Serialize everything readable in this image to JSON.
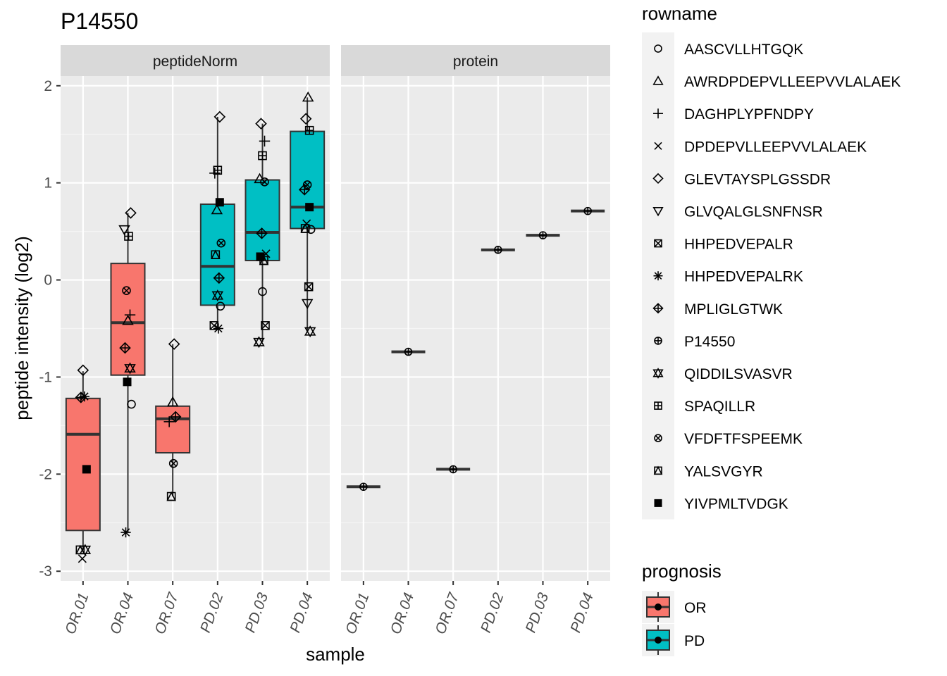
{
  "chart_data": {
    "type": "boxplot",
    "title": "P14550",
    "xlabel": "sample",
    "ylabel": "peptide intensity (log2)",
    "ylim": [
      -3.1,
      2.1
    ],
    "y_ticks": [
      "-3",
      "-2",
      "-1",
      "0",
      "1",
      "2"
    ],
    "y_tick_values": [
      -3,
      -2,
      -1,
      0,
      1,
      2
    ],
    "panels": [
      "peptideNorm",
      "protein"
    ],
    "samples": [
      "OR.01",
      "OR.04",
      "OR.07",
      "PD.02",
      "PD.03",
      "PD.04"
    ],
    "sample_group": [
      "OR",
      "OR",
      "OR",
      "PD",
      "PD",
      "PD"
    ],
    "grid": true,
    "legend_placement": "right",
    "colors": {
      "OR": "#F8766D",
      "PD": "#00BFC4",
      "panel_bg": "#EBEBEB",
      "strip_bg": "#D9D9D9",
      "grid": "#FFFFFF"
    },
    "boxes": [
      {
        "sample": "OR.01",
        "group": "OR",
        "lower_whisker": -2.78,
        "q1": -2.58,
        "median": -1.59,
        "q3": -1.22,
        "upper_whisker": -0.94
      },
      {
        "sample": "OR.04",
        "group": "OR",
        "lower_whisker": -2.6,
        "q1": -0.98,
        "median": -0.44,
        "q3": 0.17,
        "upper_whisker": 0.69
      },
      {
        "sample": "OR.07",
        "group": "OR",
        "lower_whisker": -2.23,
        "q1": -1.78,
        "median": -1.43,
        "q3": -1.3,
        "upper_whisker": -0.66
      },
      {
        "sample": "PD.02",
        "group": "PD",
        "lower_whisker": -0.5,
        "q1": -0.26,
        "median": 0.14,
        "q3": 0.78,
        "upper_whisker": 1.68
      },
      {
        "sample": "PD.03",
        "group": "PD",
        "lower_whisker": -0.64,
        "q1": 0.2,
        "median": 0.49,
        "q3": 1.03,
        "upper_whisker": 1.61
      },
      {
        "sample": "PD.04",
        "group": "PD",
        "lower_whisker": -0.53,
        "q1": 0.53,
        "median": 0.75,
        "q3": 1.53,
        "upper_whisker": 1.88
      }
    ],
    "points": [
      {
        "sample": "OR.01",
        "peptide": "YALSVGYR",
        "y": -2.78
      },
      {
        "sample": "OR.01",
        "peptide": "QIDDILSVASVR",
        "y": -2.78
      },
      {
        "sample": "OR.01",
        "peptide": "DPDEPVLLEEPVVLALAEK",
        "y": -2.87
      },
      {
        "sample": "OR.01",
        "peptide": "YIVPMLTVDGK",
        "y": -1.95
      },
      {
        "sample": "OR.01",
        "peptide": "MPLIGLGTWK",
        "y": -1.21
      },
      {
        "sample": "OR.01",
        "peptide": "HHPEDVEPALRK",
        "y": -1.2
      },
      {
        "sample": "OR.01",
        "peptide": "GLEVTAYSPLGSSDR",
        "y": -0.93
      },
      {
        "sample": "OR.04",
        "peptide": "GLEVTAYSPLGSSDR",
        "y": 0.69
      },
      {
        "sample": "OR.04",
        "peptide": "GLVQALGLSNFNSR",
        "y": 0.52
      },
      {
        "sample": "OR.04",
        "peptide": "SPAQILLR",
        "y": 0.45
      },
      {
        "sample": "OR.04",
        "peptide": "VFDFTFSPEEMK",
        "y": -0.11
      },
      {
        "sample": "OR.04",
        "peptide": "DAGHPLYPFNDPY",
        "y": -0.36
      },
      {
        "sample": "OR.04",
        "peptide": "AWRDPDEPVLLEEPVVLALAEK",
        "y": -0.42
      },
      {
        "sample": "OR.04",
        "peptide": "MPLIGLGTWK",
        "y": -0.7
      },
      {
        "sample": "OR.04",
        "peptide": "QIDDILSVASVR",
        "y": -0.91
      },
      {
        "sample": "OR.04",
        "peptide": "YIVPMLTVDGK",
        "y": -1.05
      },
      {
        "sample": "OR.04",
        "peptide": "AASCVLLHTGQK",
        "y": -1.28
      },
      {
        "sample": "OR.04",
        "peptide": "HHPEDVEPALRK",
        "y": -2.6
      },
      {
        "sample": "OR.07",
        "peptide": "GLEVTAYSPLGSSDR",
        "y": -0.66
      },
      {
        "sample": "OR.07",
        "peptide": "AWRDPDEPVLLEEPVVLALAEK",
        "y": -1.26
      },
      {
        "sample": "OR.07",
        "peptide": "MPLIGLGTWK",
        "y": -1.41
      },
      {
        "sample": "OR.07",
        "peptide": "DAGHPLYPFNDPY",
        "y": -1.46
      },
      {
        "sample": "OR.07",
        "peptide": "VFDFTFSPEEMK",
        "y": -1.89
      },
      {
        "sample": "OR.07",
        "peptide": "YALSVGYR",
        "y": -2.23
      },
      {
        "sample": "PD.02",
        "peptide": "GLEVTAYSPLGSSDR",
        "y": 1.68
      },
      {
        "sample": "PD.02",
        "peptide": "SPAQILLR",
        "y": 1.13
      },
      {
        "sample": "PD.02",
        "peptide": "DAGHPLYPFNDPY",
        "y": 1.1
      },
      {
        "sample": "PD.02",
        "peptide": "YIVPMLTVDGK",
        "y": 0.8
      },
      {
        "sample": "PD.02",
        "peptide": "AWRDPDEPVLLEEPVVLALAEK",
        "y": 0.72
      },
      {
        "sample": "PD.02",
        "peptide": "VFDFTFSPEEMK",
        "y": 0.38
      },
      {
        "sample": "PD.02",
        "peptide": "YALSVGYR",
        "y": 0.26
      },
      {
        "sample": "PD.02",
        "peptide": "MPLIGLGTWK",
        "y": 0.02
      },
      {
        "sample": "PD.02",
        "peptide": "QIDDILSVASVR",
        "y": -0.16
      },
      {
        "sample": "PD.02",
        "peptide": "AASCVLLHTGQK",
        "y": -0.27
      },
      {
        "sample": "PD.02",
        "peptide": "HHPEDVEPALR",
        "y": -0.47
      },
      {
        "sample": "PD.02",
        "peptide": "HHPEDVEPALRK",
        "y": -0.5
      },
      {
        "sample": "PD.03",
        "peptide": "GLEVTAYSPLGSSDR",
        "y": 1.61
      },
      {
        "sample": "PD.03",
        "peptide": "DAGHPLYPFNDPY",
        "y": 1.43
      },
      {
        "sample": "PD.03",
        "peptide": "SPAQILLR",
        "y": 1.28
      },
      {
        "sample": "PD.03",
        "peptide": "AWRDPDEPVLLEEPVVLALAEK",
        "y": 1.04
      },
      {
        "sample": "PD.03",
        "peptide": "VFDFTFSPEEMK",
        "y": 1.01
      },
      {
        "sample": "PD.03",
        "peptide": "MPLIGLGTWK",
        "y": 0.48
      },
      {
        "sample": "PD.03",
        "peptide": "DPDEPVLLEEPVVLALAEK",
        "y": 0.27
      },
      {
        "sample": "PD.03",
        "peptide": "YIVPMLTVDGK",
        "y": 0.24
      },
      {
        "sample": "PD.03",
        "peptide": "YALSVGYR",
        "y": 0.2
      },
      {
        "sample": "PD.03",
        "peptide": "AASCVLLHTGQK",
        "y": -0.12
      },
      {
        "sample": "PD.03",
        "peptide": "HHPEDVEPALR",
        "y": -0.47
      },
      {
        "sample": "PD.03",
        "peptide": "QIDDILSVASVR",
        "y": -0.64
      },
      {
        "sample": "PD.04",
        "peptide": "AWRDPDEPVLLEEPVVLALAEK",
        "y": 1.88
      },
      {
        "sample": "PD.04",
        "peptide": "GLEVTAYSPLGSSDR",
        "y": 1.66
      },
      {
        "sample": "PD.04",
        "peptide": "SPAQILLR",
        "y": 1.54
      },
      {
        "sample": "PD.04",
        "peptide": "VFDFTFSPEEMK",
        "y": 0.98
      },
      {
        "sample": "PD.04",
        "peptide": "MPLIGLGTWK",
        "y": 0.93
      },
      {
        "sample": "PD.04",
        "peptide": "YIVPMLTVDGK",
        "y": 0.75
      },
      {
        "sample": "PD.04",
        "peptide": "DPDEPVLLEEPVVLALAEK",
        "y": 0.58
      },
      {
        "sample": "PD.04",
        "peptide": "AASCVLLHTGQK",
        "y": 0.52
      },
      {
        "sample": "PD.04",
        "peptide": "YALSVGYR",
        "y": 0.53
      },
      {
        "sample": "PD.04",
        "peptide": "HHPEDVEPALR",
        "y": -0.07
      },
      {
        "sample": "PD.04",
        "peptide": "GLVQALGLSNFNSR",
        "y": -0.24
      },
      {
        "sample": "PD.04",
        "peptide": "QIDDILSVASVR",
        "y": -0.53
      }
    ],
    "protein": [
      {
        "sample": "OR.01",
        "group": "OR",
        "y": -2.13
      },
      {
        "sample": "OR.04",
        "group": "OR",
        "y": -0.74
      },
      {
        "sample": "OR.07",
        "group": "OR",
        "y": -1.95
      },
      {
        "sample": "PD.02",
        "group": "PD",
        "y": 0.31
      },
      {
        "sample": "PD.03",
        "group": "PD",
        "y": 0.46
      },
      {
        "sample": "PD.04",
        "group": "PD",
        "y": 0.71
      }
    ],
    "legend_rowname": {
      "title": "rowname",
      "items": [
        {
          "label": "AASCVLLHTGQK",
          "shape": "circle"
        },
        {
          "label": "AWRDPDEPVLLEEPVVLALAEK",
          "shape": "triangle"
        },
        {
          "label": "DAGHPLYPFNDPY",
          "shape": "plus"
        },
        {
          "label": "DPDEPVLLEEPVVLALAEK",
          "shape": "cross"
        },
        {
          "label": "GLEVTAYSPLGSSDR",
          "shape": "diamond"
        },
        {
          "label": "GLVQALGLSNFNSR",
          "shape": "triangle-down"
        },
        {
          "label": "HHPEDVEPALR",
          "shape": "square-cross"
        },
        {
          "label": "HHPEDVEPALRK",
          "shape": "asterisk"
        },
        {
          "label": "MPLIGLGTWK",
          "shape": "diamond-plus"
        },
        {
          "label": "P14550",
          "shape": "circle-plus"
        },
        {
          "label": "QIDDILSVASVR",
          "shape": "star-of-david"
        },
        {
          "label": "SPAQILLR",
          "shape": "square-plus"
        },
        {
          "label": "VFDFTFSPEEMK",
          "shape": "circle-cross"
        },
        {
          "label": "YALSVGYR",
          "shape": "square-triangle"
        },
        {
          "label": "YIVPMLTVDGK",
          "shape": "square-filled"
        }
      ]
    },
    "legend_prognosis": {
      "title": "prognosis",
      "items": [
        {
          "label": "OR",
          "color": "#F8766D"
        },
        {
          "label": "PD",
          "color": "#00BFC4"
        }
      ]
    }
  }
}
